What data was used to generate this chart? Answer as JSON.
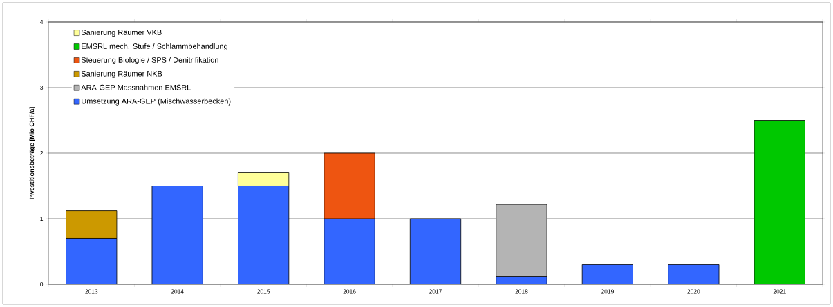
{
  "chart_data": {
    "type": "bar",
    "stacked": true,
    "ylabel": "Investitionsbeträge [Mio CHF/a]",
    "categories": [
      "2013",
      "2014",
      "2015",
      "2016",
      "2017",
      "2018",
      "2019",
      "2020",
      "2021"
    ],
    "series": [
      {
        "name": "Umsetzung ARA-GEP (Mischwasserbecken)",
        "color": "#3366ff",
        "values": [
          0.7,
          1.5,
          1.5,
          1.0,
          1.0,
          0.12,
          0.3,
          0.3,
          null
        ]
      },
      {
        "name": "ARA-GEP Massnahmen EMSRL",
        "color": "#b4b4b4",
        "values": [
          null,
          null,
          null,
          null,
          null,
          1.1,
          null,
          null,
          null
        ]
      },
      {
        "name": "Sanierung Räumer NKB",
        "color": "#cc9900",
        "values": [
          0.42,
          null,
          null,
          null,
          null,
          null,
          null,
          null,
          null
        ]
      },
      {
        "name": "Steuerung Biologie / SPS / Denitrifikation",
        "color": "#ee5511",
        "values": [
          null,
          null,
          null,
          1.0,
          null,
          null,
          null,
          null,
          null
        ]
      },
      {
        "name": "EMSRL mech. Stufe / Schlammbehandlung",
        "color": "#00c800",
        "values": [
          null,
          null,
          null,
          null,
          null,
          null,
          null,
          null,
          2.5
        ]
      },
      {
        "name": "Sanierung Räumer VKB",
        "color": "#ffff99",
        "values": [
          null,
          null,
          0.2,
          null,
          null,
          null,
          null,
          null,
          null
        ]
      }
    ],
    "ylim": [
      0,
      4
    ],
    "yticks": [
      0,
      1,
      2,
      3,
      4
    ],
    "grid": "y",
    "legend": "top left"
  }
}
